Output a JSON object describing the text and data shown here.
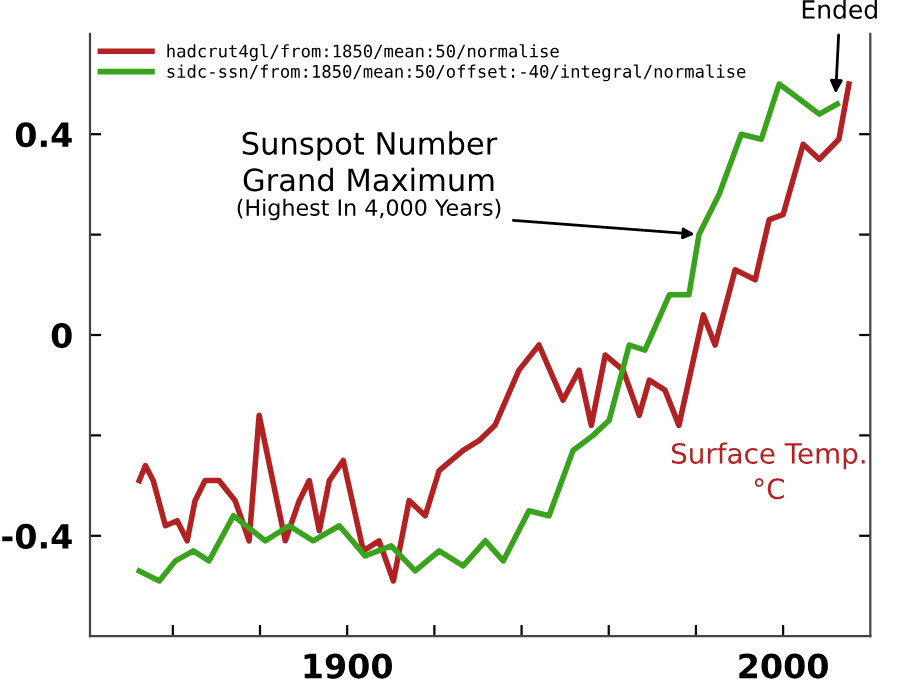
{
  "chart_data": {
    "type": "line",
    "xlim": [
      1841,
      2020
    ],
    "ylim": [
      -0.6,
      0.6
    ],
    "xticks": [
      {
        "value": 1860,
        "label": null
      },
      {
        "value": 1880,
        "label": null
      },
      1900,
      {
        "value": 1920,
        "label": null
      },
      {
        "value": 1940,
        "label": null
      },
      {
        "value": 1960,
        "label": null
      },
      {
        "value": 1980,
        "label": null
      },
      2000
    ],
    "yticks": [
      -0.4,
      {
        "value": -0.2,
        "label": null
      },
      0,
      {
        "value": 0.2,
        "label": null
      },
      0.4
    ],
    "grid": false,
    "legend": "top left",
    "line_style": "solid",
    "marker": "none",
    "series": [
      {
        "name": "hadcrut4gl/from:1850/mean:50/normalise",
        "color": "#b22222",
        "x": [
          1852.3,
          1853.7,
          1855.5,
          1858.3,
          1861,
          1863.3,
          1865.1,
          1867.4,
          1870.6,
          1874.3,
          1877.5,
          1879.8,
          1885.8,
          1889,
          1891.3,
          1893.6,
          1895.9,
          1899.1,
          1903.7,
          1907.3,
          1910.6,
          1914.2,
          1917.9,
          1921.1,
          1926.6,
          1930.3,
          1933.9,
          1939.4,
          1944,
          1949.5,
          1953.2,
          1956,
          1959.2,
          1963.3,
          1967,
          1969.3,
          1972.9,
          1976.1,
          1979.4,
          1981.7,
          1984.4,
          1989,
          1993.6,
          1996.8,
          2000,
          2004.6,
          2008.3,
          2012.8,
          2015.1
        ],
        "values": [
          -0.29,
          -0.26,
          -0.29,
          -0.38,
          -0.37,
          -0.41,
          -0.33,
          -0.29,
          -0.29,
          -0.33,
          -0.41,
          -0.16,
          -0.41,
          -0.33,
          -0.29,
          -0.39,
          -0.29,
          -0.25,
          -0.43,
          -0.41,
          -0.49,
          -0.33,
          -0.36,
          -0.27,
          -0.23,
          -0.21,
          -0.18,
          -0.07,
          -0.02,
          -0.13,
          -0.07,
          -0.18,
          -0.04,
          -0.07,
          -0.16,
          -0.09,
          -0.11,
          -0.18,
          -0.05,
          0.04,
          -0.02,
          0.13,
          0.11,
          0.23,
          0.24,
          0.38,
          0.35,
          0.39,
          0.5
        ]
      },
      {
        "name": "sidc-ssn/from:1850/mean:50/offset:-40/integral/normalise",
        "color": "#3aa31e",
        "x": [
          1852.3,
          1856.9,
          1860.6,
          1864.7,
          1868.3,
          1873.9,
          1881.2,
          1886.7,
          1892.2,
          1898.2,
          1904.1,
          1910.1,
          1915.6,
          1921.1,
          1926.6,
          1931.7,
          1935.8,
          1941.7,
          1946.3,
          1951.8,
          1956.4,
          1960.1,
          1964.7,
          1968.3,
          1973.9,
          1978.4,
          1980.7,
          1985.3,
          1990.4,
          1995,
          1999.1,
          2003.7,
          2008.3,
          2012.4
        ],
        "values": [
          -0.47,
          -0.49,
          -0.45,
          -0.43,
          -0.45,
          -0.36,
          -0.41,
          -0.38,
          -0.41,
          -0.38,
          -0.44,
          -0.42,
          -0.47,
          -0.43,
          -0.46,
          -0.41,
          -0.45,
          -0.35,
          -0.36,
          -0.23,
          -0.2,
          -0.17,
          -0.02,
          -0.03,
          0.08,
          0.08,
          0.2,
          0.28,
          0.4,
          0.39,
          0.5,
          0.47,
          0.44,
          0.46
        ]
      }
    ],
    "annotations": [
      {
        "text": "Ended",
        "x": 2012,
        "y": 0.47
      },
      "Sunspot Number\nGrand Maximum",
      {
        "text": "(Highest In 4,000 Years)",
        "x": 1981,
        "y": 0.2
      },
      "Surface Temp.\n°C"
    ]
  }
}
